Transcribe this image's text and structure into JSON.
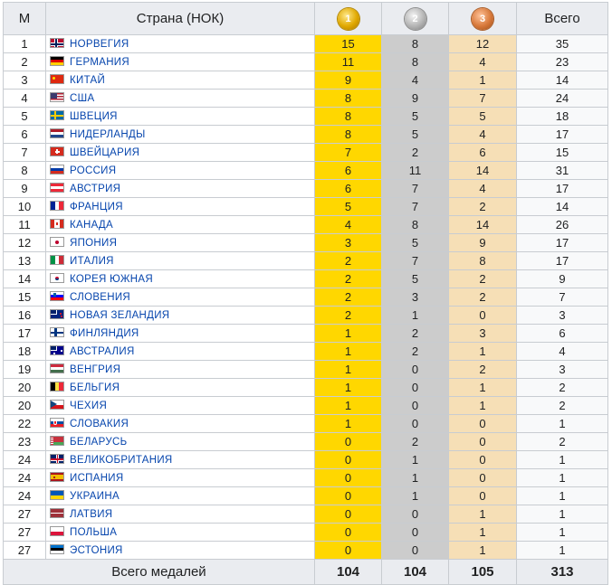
{
  "header": {
    "rank": "М",
    "country": "Страна (НОК)",
    "gold_medal_number": "1",
    "silver_medal_number": "2",
    "bronze_medal_number": "3",
    "total": "Всего"
  },
  "rows": [
    {
      "rank": "1",
      "country": "НОРВЕГИЯ",
      "flag": "norway-flag",
      "gold": "15",
      "silver": "8",
      "bronze": "12",
      "total": "35"
    },
    {
      "rank": "2",
      "country": "ГЕРМАНИЯ",
      "flag": "germany-flag",
      "gold": "11",
      "silver": "8",
      "bronze": "4",
      "total": "23"
    },
    {
      "rank": "3",
      "country": "КИТАЙ",
      "flag": "china-flag",
      "gold": "9",
      "silver": "4",
      "bronze": "1",
      "total": "14"
    },
    {
      "rank": "4",
      "country": "США",
      "flag": "usa-flag",
      "gold": "8",
      "silver": "9",
      "bronze": "7",
      "total": "24"
    },
    {
      "rank": "5",
      "country": "ШВЕЦИЯ",
      "flag": "sweden-flag",
      "gold": "8",
      "silver": "5",
      "bronze": "5",
      "total": "18"
    },
    {
      "rank": "6",
      "country": "НИДЕРЛАНДЫ",
      "flag": "netherlands-flag",
      "gold": "8",
      "silver": "5",
      "bronze": "4",
      "total": "17"
    },
    {
      "rank": "7",
      "country": "ШВЕЙЦАРИЯ",
      "flag": "switzerland-flag",
      "gold": "7",
      "silver": "2",
      "bronze": "6",
      "total": "15"
    },
    {
      "rank": "8",
      "country": "РОССИЯ",
      "flag": "russia-flag",
      "gold": "6",
      "silver": "11",
      "bronze": "14",
      "total": "31"
    },
    {
      "rank": "9",
      "country": "АВСТРИЯ",
      "flag": "austria-flag",
      "gold": "6",
      "silver": "7",
      "bronze": "4",
      "total": "17"
    },
    {
      "rank": "10",
      "country": "ФРАНЦИЯ",
      "flag": "france-flag",
      "gold": "5",
      "silver": "7",
      "bronze": "2",
      "total": "14"
    },
    {
      "rank": "11",
      "country": "КАНАДА",
      "flag": "canada-flag",
      "gold": "4",
      "silver": "8",
      "bronze": "14",
      "total": "26"
    },
    {
      "rank": "12",
      "country": "ЯПОНИЯ",
      "flag": "japan-flag",
      "gold": "3",
      "silver": "5",
      "bronze": "9",
      "total": "17"
    },
    {
      "rank": "13",
      "country": "ИТАЛИЯ",
      "flag": "italy-flag",
      "gold": "2",
      "silver": "7",
      "bronze": "8",
      "total": "17"
    },
    {
      "rank": "14",
      "country": "КОРЕЯ ЮЖНАЯ",
      "flag": "south-korea-flag",
      "gold": "2",
      "silver": "5",
      "bronze": "2",
      "total": "9"
    },
    {
      "rank": "15",
      "country": "СЛОВЕНИЯ",
      "flag": "slovenia-flag",
      "gold": "2",
      "silver": "3",
      "bronze": "2",
      "total": "7"
    },
    {
      "rank": "16",
      "country": "НОВАЯ ЗЕЛАНДИЯ",
      "flag": "new-zealand-flag",
      "gold": "2",
      "silver": "1",
      "bronze": "0",
      "total": "3"
    },
    {
      "rank": "17",
      "country": "ФИНЛЯНДИЯ",
      "flag": "finland-flag",
      "gold": "1",
      "silver": "2",
      "bronze": "3",
      "total": "6"
    },
    {
      "rank": "18",
      "country": "АВСТРАЛИЯ",
      "flag": "australia-flag",
      "gold": "1",
      "silver": "2",
      "bronze": "1",
      "total": "4"
    },
    {
      "rank": "19",
      "country": "ВЕНГРИЯ",
      "flag": "hungary-flag",
      "gold": "1",
      "silver": "0",
      "bronze": "2",
      "total": "3"
    },
    {
      "rank": "20",
      "country": "БЕЛЬГИЯ",
      "flag": "belgium-flag",
      "gold": "1",
      "silver": "0",
      "bronze": "1",
      "total": "2"
    },
    {
      "rank": "20",
      "country": "ЧЕХИЯ",
      "flag": "czech-flag",
      "gold": "1",
      "silver": "0",
      "bronze": "1",
      "total": "2"
    },
    {
      "rank": "22",
      "country": "СЛОВАКИЯ",
      "flag": "slovakia-flag",
      "gold": "1",
      "silver": "0",
      "bronze": "0",
      "total": "1"
    },
    {
      "rank": "23",
      "country": "БЕЛАРУСЬ",
      "flag": "belarus-flag",
      "gold": "0",
      "silver": "2",
      "bronze": "0",
      "total": "2"
    },
    {
      "rank": "24",
      "country": "ВЕЛИКОБРИТАНИЯ",
      "flag": "uk-flag",
      "gold": "0",
      "silver": "1",
      "bronze": "0",
      "total": "1"
    },
    {
      "rank": "24",
      "country": "ИСПАНИЯ",
      "flag": "spain-flag",
      "gold": "0",
      "silver": "1",
      "bronze": "0",
      "total": "1"
    },
    {
      "rank": "24",
      "country": "УКРАИНА",
      "flag": "ukraine-flag",
      "gold": "0",
      "silver": "1",
      "bronze": "0",
      "total": "1"
    },
    {
      "rank": "27",
      "country": "ЛАТВИЯ",
      "flag": "latvia-flag",
      "gold": "0",
      "silver": "0",
      "bronze": "1",
      "total": "1"
    },
    {
      "rank": "27",
      "country": "ПОЛЬША",
      "flag": "poland-flag",
      "gold": "0",
      "silver": "0",
      "bronze": "1",
      "total": "1"
    },
    {
      "rank": "27",
      "country": "ЭСТОНИЯ",
      "flag": "estonia-flag",
      "gold": "0",
      "silver": "0",
      "bronze": "1",
      "total": "1"
    }
  ],
  "footer": {
    "label": "Всего медалей",
    "gold": "104",
    "silver": "104",
    "bronze": "105",
    "total": "313"
  },
  "colors": {
    "gold_cell": "#ffd700",
    "silver_cell": "#cccccc",
    "bronze_cell": "#f6dfb6",
    "link": "#0645ad",
    "header_bg": "#eaecf0",
    "border": "#c8ccd1"
  }
}
